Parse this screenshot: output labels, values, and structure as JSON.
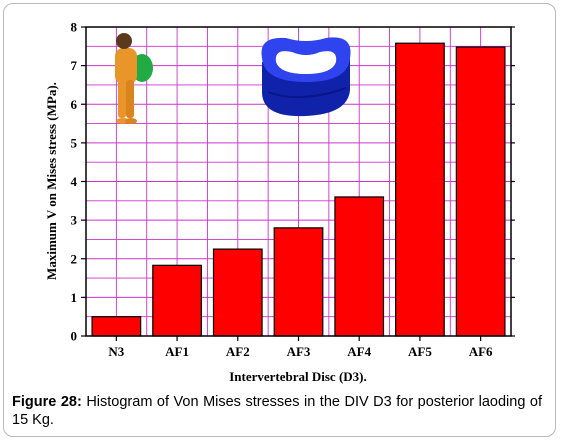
{
  "chart_data": {
    "type": "bar",
    "categories": [
      "N3",
      "AF1",
      "AF2",
      "AF3",
      "AF4",
      "AF5",
      "AF6"
    ],
    "values": [
      0.5,
      1.83,
      2.25,
      2.8,
      3.6,
      7.58,
      7.48
    ],
    "xlabel": "Intervertebral Disc (D3).",
    "ylabel": "Maximum V on Mises stress (MPa).",
    "ylim": [
      0,
      8
    ],
    "yticks": [
      "0",
      "1",
      "2",
      "3",
      "4",
      "5",
      "6",
      "7",
      "8"
    ],
    "grid": true,
    "colors": {
      "bar": "#ff0000",
      "bar_edge": "#000000",
      "grid": "#cc33cc",
      "disc_model": "#2233dd",
      "figure_skin": "#e8962a",
      "figure_backpack": "#22aa44"
    }
  },
  "caption": {
    "label": "Figure 28:",
    "text": "Histogram of Von Mises stresses in the DIV D3 for posterior laoding of 15 Kg."
  }
}
